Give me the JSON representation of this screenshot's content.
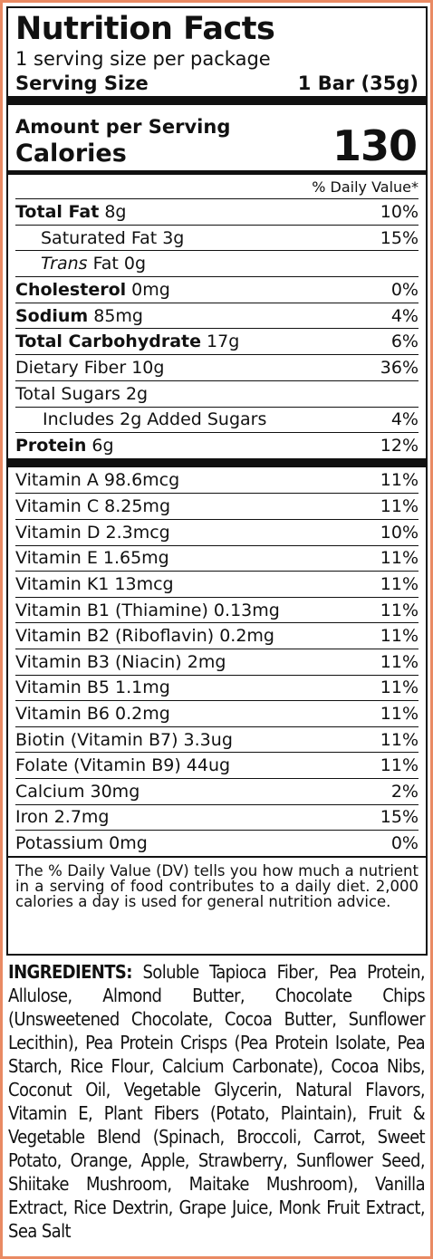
{
  "label": {
    "title": "Nutrition Facts",
    "servings_per_container": "1 serving size per package",
    "serving_size_label": "Serving Size",
    "serving_size_value": "1 Bar (35g)",
    "amount_per_serving": "Amount per Serving",
    "calories_label": "Calories",
    "calories_value": "130",
    "dv_header": "% Daily Value*",
    "nutrients": [
      {
        "name": "Total Fat",
        "amount": " 8g",
        "dv": "10%"
      },
      {
        "name": "Saturated Fat 3g",
        "amount": "",
        "dv": "15%"
      },
      {
        "name_italic": "Trans",
        "name": " Fat 0g",
        "dv": ""
      },
      {
        "name": "Cholesterol",
        "amount": " 0mg",
        "dv": "0%"
      },
      {
        "name": "Sodium",
        "amount": " 85mg",
        "dv": "4%"
      },
      {
        "name": "Total Carbohydrate",
        "amount": " 17g",
        "dv": "6%"
      },
      {
        "name": "Dietary Fiber 10g",
        "amount": "",
        "dv": "36%"
      },
      {
        "name": "Total Sugars 2g",
        "amount": "",
        "dv": ""
      },
      {
        "name": "Includes 2g Added Sugars",
        "amount": "",
        "dv": "4%"
      },
      {
        "name": "Protein",
        "amount": " 6g",
        "dv": "12%"
      }
    ],
    "vitamins": [
      {
        "name": "Vitamin A 98.6mcg",
        "dv": "11%"
      },
      {
        "name": "Vitamin C 8.25mg",
        "dv": "11%"
      },
      {
        "name": "Vitamin D 2.3mcg",
        "dv": "10%"
      },
      {
        "name": "Vitamin E 1.65mg",
        "dv": "11%"
      },
      {
        "name": "Vitamin K1 13mcg",
        "dv": "11%"
      },
      {
        "name": "Vitamin B1 (Thiamine) 0.13mg",
        "dv": "11%"
      },
      {
        "name": "Vitamin B2 (Riboflavin) 0.2mg",
        "dv": "11%"
      },
      {
        "name": "Vitamin B3 (Niacin) 2mg",
        "dv": "11%"
      },
      {
        "name": "Vitamin B5 1.1mg",
        "dv": "11%"
      },
      {
        "name": "Vitamin B6 0.2mg",
        "dv": "11%"
      },
      {
        "name": "Biotin (Vitamin B7) 3.3ug",
        "dv": "11%"
      },
      {
        "name": "Folate (Vitamin B9) 44ug",
        "dv": "11%"
      },
      {
        "name": "Calcium 30mg",
        "dv": "2%"
      },
      {
        "name": "Iron 2.7mg",
        "dv": "15%"
      },
      {
        "name": "Potassium 0mg",
        "dv": "0%"
      }
    ],
    "footnote": "The % Daily Value (DV) tells you how much a nutrient in a serving of food contributes to a daily diet. 2,000 calories a day is used for general nutrition advice."
  },
  "ingredients": {
    "label": "INGREDIENTS:",
    "text": " Soluble Tapioca Fiber, Pea Protein, Allulose, Almond Butter, Chocolate Chips (Unsweetened Chocolate, Cocoa Butter, Sunflower Lecithin), Pea Protein Crisps (Pea Protein Isolate, Pea Starch, Rice Flour, Calcium Carbonate), Cocoa Nibs, Coconut Oil, Vegetable Glycerin, Natural Flavors, Vitamin E, Plant Fibers (Potato, Plaintain), Fruit & Vegetable Blend (Spinach, Broccoli, Carrot, Sweet Potato, Orange, Apple, Strawberry, Sunflower Seed, Shiitake Mushroom, Maitake Mushroom), Vanilla Extract, Rice Dextrin, Grape Juice, Monk Fruit Extract, Sea Salt"
  },
  "colors": {
    "border": "#e98a63",
    "ink": "#111111"
  }
}
